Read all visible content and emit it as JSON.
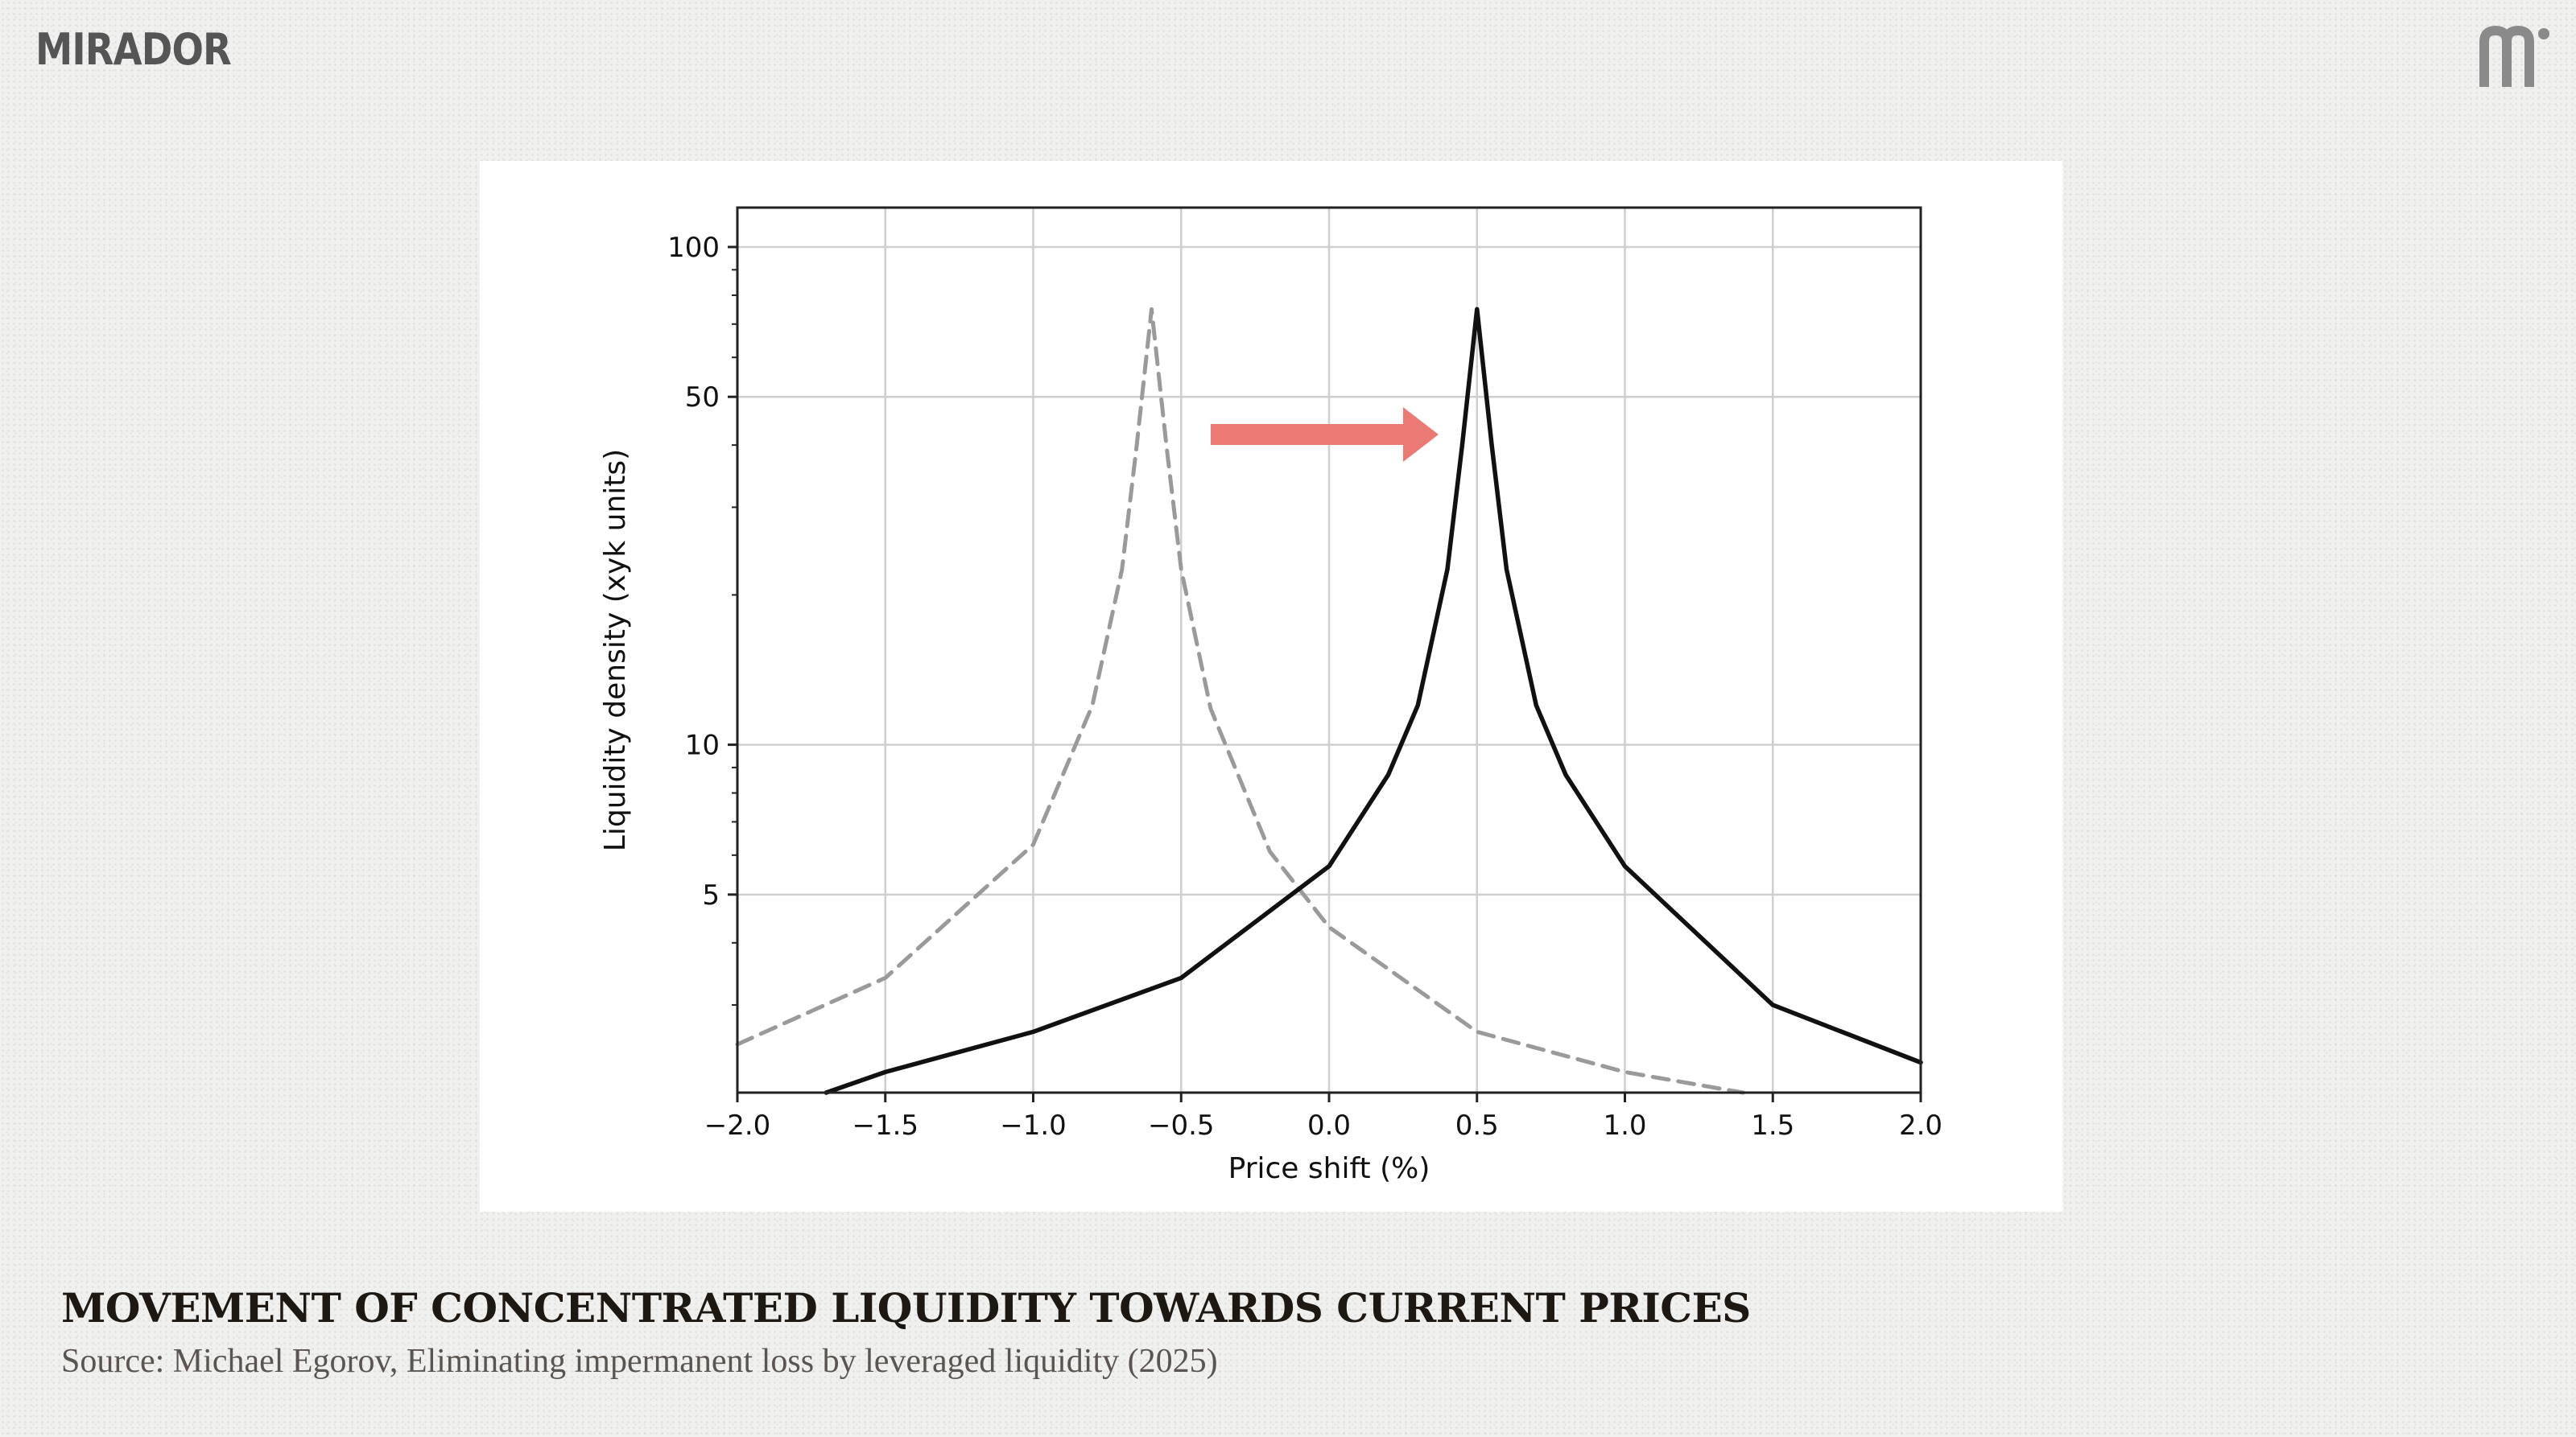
{
  "brand": {
    "name": "MIRADOR",
    "corner_logo_icon": "mirador-m-icon"
  },
  "caption": {
    "title": "MOVEMENT OF CONCENTRATED LIQUIDITY TOWARDS CURRENT PRICES",
    "source": "Source: Michael Egorov, Eliminating impermanent loss by leveraged liquidity (2025)"
  },
  "chart_data": {
    "type": "line",
    "xlabel": "Price shift (%)",
    "ylabel": "Liquidity density (xyk units)",
    "xlim": [
      -2.0,
      2.0
    ],
    "ylim": [
      2.0,
      120
    ],
    "yscale": "log",
    "xticks": [
      -2.0,
      -1.5,
      -1.0,
      -0.5,
      0.0,
      0.5,
      1.0,
      1.5,
      2.0
    ],
    "xtick_labels": [
      "−2.0",
      "−1.5",
      "−1.0",
      "−0.5",
      "0.0",
      "0.5",
      "1.0",
      "1.5",
      "2.0"
    ],
    "yticks": [
      5,
      10,
      50,
      100
    ],
    "ytick_labels": [
      "5",
      "10",
      "50",
      "100"
    ],
    "grid": true,
    "legend": null,
    "annotations": [
      {
        "type": "arrow",
        "from": [
          -0.4,
          42
        ],
        "to": [
          0.37,
          42
        ],
        "color": "#ea7a72"
      }
    ],
    "series": [
      {
        "style": "dashed",
        "color": "#9a9a9a",
        "x": [
          -2.0,
          -1.5,
          -1.0,
          -0.8,
          -0.7,
          -0.65,
          -0.6,
          -0.55,
          -0.5,
          -0.4,
          -0.2,
          0.0,
          0.5,
          1.0,
          1.4
        ],
        "y": [
          2.5,
          3.4,
          6.3,
          12.0,
          22.5,
          40.0,
          75.0,
          40.0,
          22.5,
          11.8,
          6.1,
          4.3,
          2.65,
          2.2,
          2.0
        ]
      },
      {
        "style": "solid",
        "color": "#111111",
        "x": [
          -1.7,
          -1.5,
          -1.0,
          -0.5,
          0.0,
          0.2,
          0.3,
          0.4,
          0.45,
          0.5,
          0.55,
          0.6,
          0.7,
          0.8,
          1.0,
          1.5,
          2.0
        ],
        "y": [
          2.0,
          2.2,
          2.65,
          3.4,
          5.7,
          8.7,
          12.0,
          22.5,
          40.0,
          75.0,
          40.0,
          22.5,
          12.0,
          8.7,
          5.7,
          3.0,
          2.3
        ]
      }
    ]
  }
}
